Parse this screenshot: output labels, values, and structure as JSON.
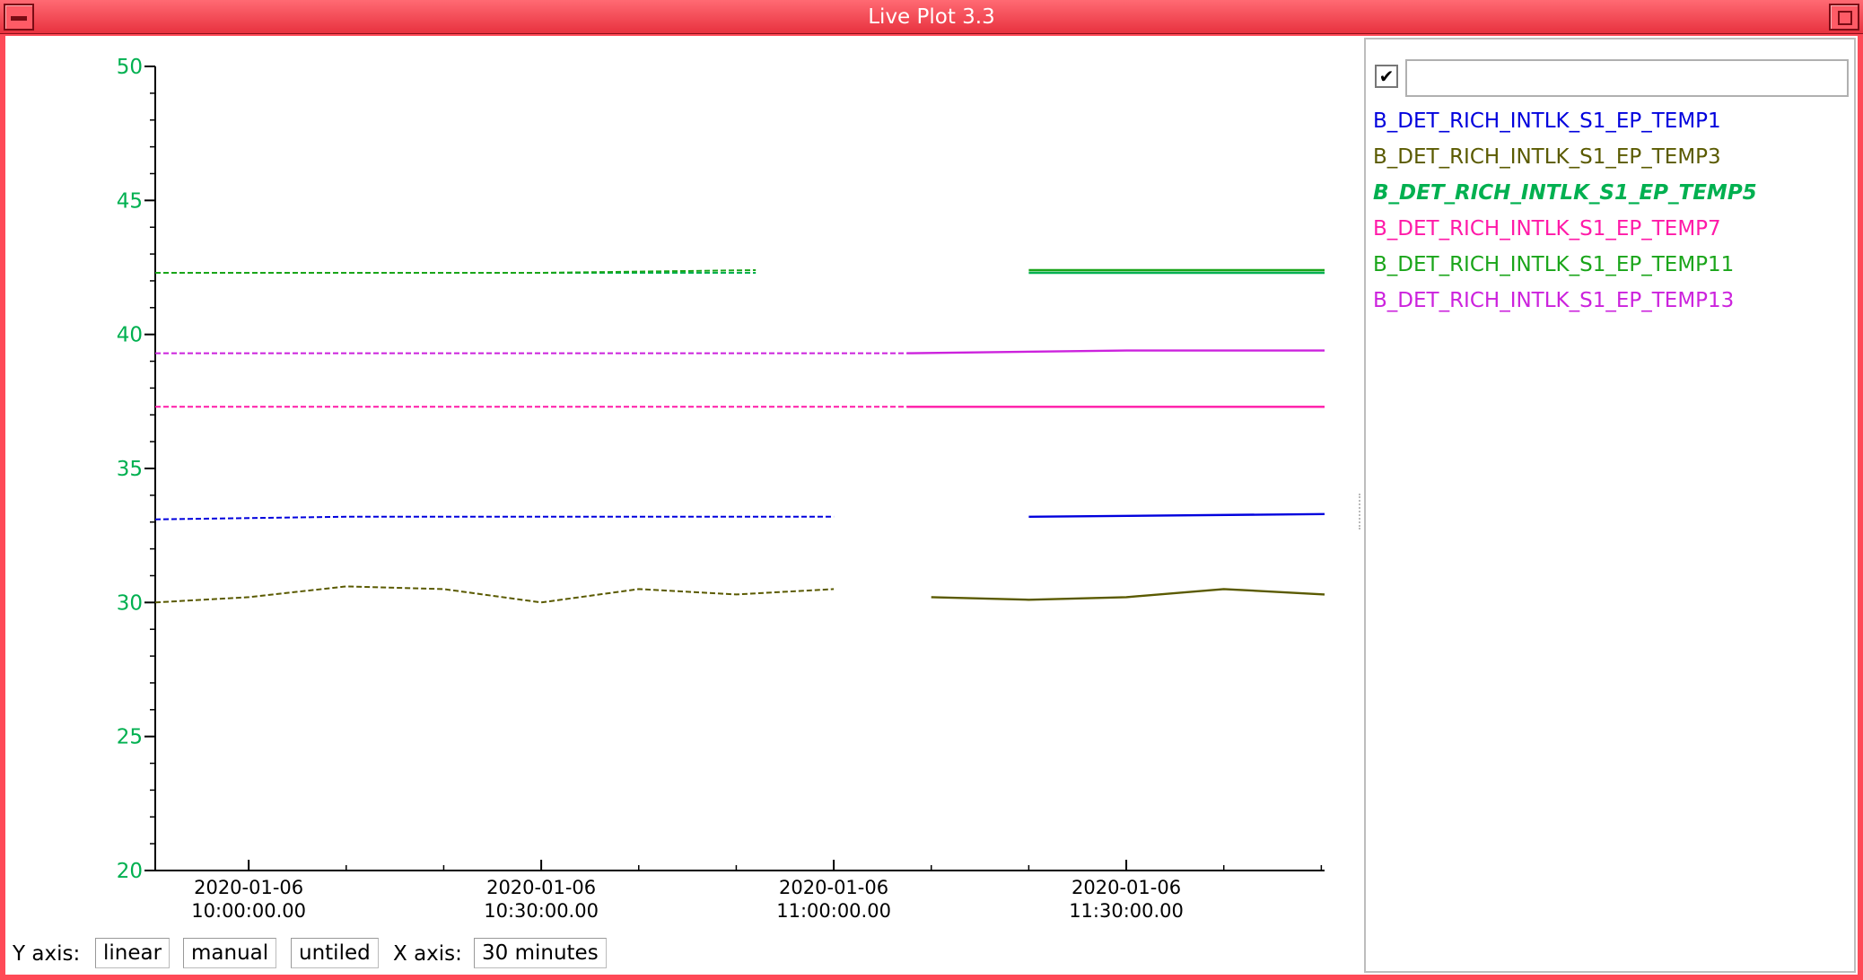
{
  "window": {
    "title": "Live Plot 3.3"
  },
  "axis_controls": {
    "y_label": "Y axis:",
    "y_scale": "linear",
    "y_range_mode": "manual",
    "tiling": "untiled",
    "x_label": "X axis:",
    "x_span": "30 minutes"
  },
  "legend": {
    "checked": true,
    "check_glyph": "✔",
    "filter_value": "",
    "selected": "B_DET_RICH_INTLK_S1_EP_TEMP5",
    "items": [
      {
        "name": "B_DET_RICH_INTLK_S1_EP_TEMP1",
        "color": "#0000dd"
      },
      {
        "name": "B_DET_RICH_INTLK_S1_EP_TEMP3",
        "color": "#5a5a00"
      },
      {
        "name": "B_DET_RICH_INTLK_S1_EP_TEMP5",
        "color": "#00b050"
      },
      {
        "name": "B_DET_RICH_INTLK_S1_EP_TEMP7",
        "color": "#ff1aa8"
      },
      {
        "name": "B_DET_RICH_INTLK_S1_EP_TEMP11",
        "color": "#1aa51a"
      },
      {
        "name": "B_DET_RICH_INTLK_S1_EP_TEMP13",
        "color": "#cc22dd"
      }
    ]
  },
  "chart_data": {
    "type": "line",
    "title": "",
    "xlabel": "",
    "ylabel": "",
    "x_axis_type": "time",
    "xlim": [
      "2020-01-06 09:50:25",
      "2020-01-06 11:50:20"
    ],
    "ylim": [
      20,
      50
    ],
    "y_ticks": [
      20,
      25,
      30,
      35,
      40,
      45,
      50
    ],
    "y_tick_color": "#00b050",
    "x_ticks": [
      {
        "date": "2020-01-06",
        "time": "10:00:00.00",
        "at": "2020-01-06 10:00:00"
      },
      {
        "date": "2020-01-06",
        "time": "10:30:00.00",
        "at": "2020-01-06 10:30:00"
      },
      {
        "date": "2020-01-06",
        "time": "11:00:00.00",
        "at": "2020-01-06 11:00:00"
      },
      {
        "date": "2020-01-06",
        "time": "11:30:00.00",
        "at": "2020-01-06 11:30:00"
      }
    ],
    "grid": false,
    "legend_position": "right panel",
    "archived_until": "2020-01-06 11:07:30",
    "series": [
      {
        "name": "B_DET_RICH_INTLK_S1_EP_TEMP1",
        "color": "#0000dd",
        "points": [
          [
            "2020-01-06 09:50:25",
            33.1
          ],
          [
            "2020-01-06 10:10:00",
            33.2
          ],
          [
            "2020-01-06 10:30:00",
            33.2
          ],
          [
            "2020-01-06 11:00:00",
            33.2
          ],
          [
            "2020-01-06 11:20:00",
            33.2
          ],
          [
            "2020-01-06 11:50:20",
            33.3
          ]
        ]
      },
      {
        "name": "B_DET_RICH_INTLK_S1_EP_TEMP3",
        "color": "#5a5a00",
        "points": [
          [
            "2020-01-06 09:50:25",
            30.0
          ],
          [
            "2020-01-06 10:00:00",
            30.2
          ],
          [
            "2020-01-06 10:10:00",
            30.6
          ],
          [
            "2020-01-06 10:20:00",
            30.5
          ],
          [
            "2020-01-06 10:30:00",
            30.0
          ],
          [
            "2020-01-06 10:40:00",
            30.5
          ],
          [
            "2020-01-06 10:50:00",
            30.3
          ],
          [
            "2020-01-06 11:00:00",
            30.5
          ],
          [
            "2020-01-06 11:10:00",
            30.2
          ],
          [
            "2020-01-06 11:20:00",
            30.1
          ],
          [
            "2020-01-06 11:30:00",
            30.2
          ],
          [
            "2020-01-06 11:40:00",
            30.5
          ],
          [
            "2020-01-06 11:50:20",
            30.3
          ]
        ]
      },
      {
        "name": "B_DET_RICH_INTLK_S1_EP_TEMP5",
        "color": "#00b050",
        "points": [
          [
            "2020-01-06 09:50:25",
            42.3
          ],
          [
            "2020-01-06 10:30:00",
            42.3
          ],
          [
            "2020-01-06 10:52:00",
            42.3
          ],
          [
            "2020-01-06 11:20:00",
            42.3
          ],
          [
            "2020-01-06 11:50:20",
            42.3
          ]
        ]
      },
      {
        "name": "B_DET_RICH_INTLK_S1_EP_TEMP7",
        "color": "#ff1aa8",
        "points": [
          [
            "2020-01-06 09:50:25",
            37.3
          ],
          [
            "2020-01-06 10:30:00",
            37.3
          ],
          [
            "2020-01-06 11:07:30",
            37.3
          ],
          [
            "2020-01-06 11:30:00",
            37.3
          ],
          [
            "2020-01-06 11:50:20",
            37.3
          ]
        ]
      },
      {
        "name": "B_DET_RICH_INTLK_S1_EP_TEMP11",
        "color": "#1aa51a",
        "points": [
          [
            "2020-01-06 09:50:25",
            42.3
          ],
          [
            "2020-01-06 10:30:00",
            42.3
          ],
          [
            "2020-01-06 10:52:00",
            42.4
          ],
          [
            "2020-01-06 11:20:00",
            42.4
          ],
          [
            "2020-01-06 11:50:20",
            42.4
          ]
        ]
      },
      {
        "name": "B_DET_RICH_INTLK_S1_EP_TEMP13",
        "color": "#cc22dd",
        "points": [
          [
            "2020-01-06 09:50:25",
            39.3
          ],
          [
            "2020-01-06 10:30:00",
            39.3
          ],
          [
            "2020-01-06 11:07:30",
            39.3
          ],
          [
            "2020-01-06 11:30:00",
            39.4
          ],
          [
            "2020-01-06 11:50:20",
            39.4
          ]
        ]
      }
    ]
  }
}
